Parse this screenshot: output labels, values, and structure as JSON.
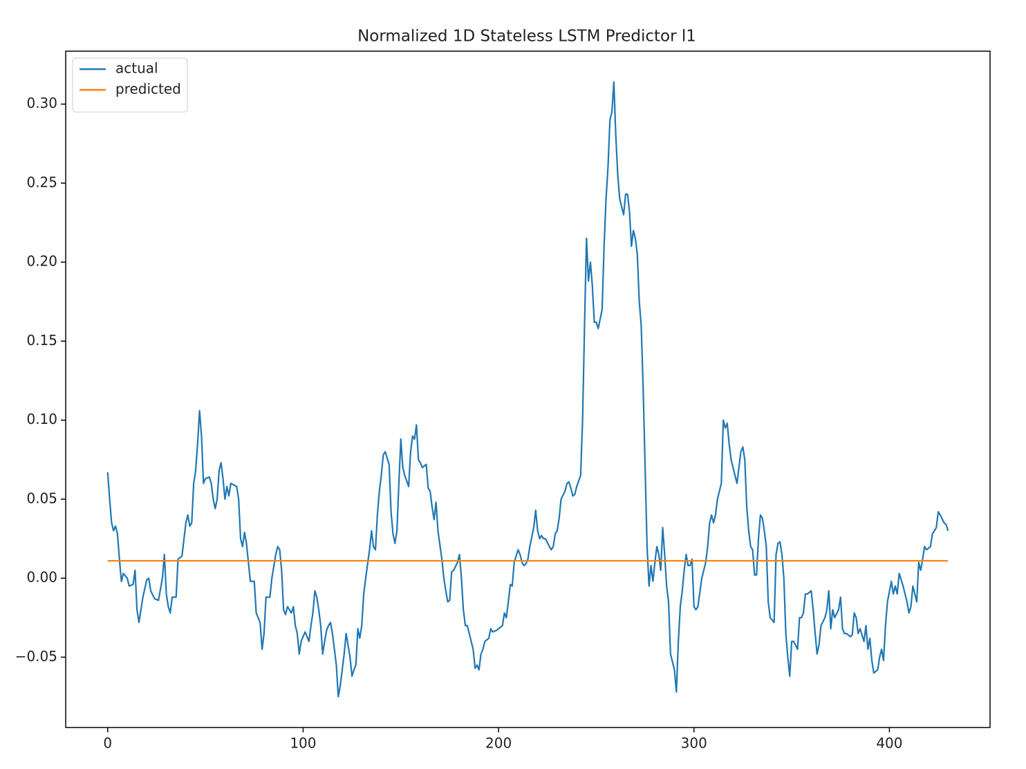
{
  "chart_data": {
    "type": "line",
    "title": "Normalized 1D Stateless LSTM Predictor l1",
    "xlim": [
      -21.5,
      451.5
    ],
    "ylim": [
      -0.0945,
      0.3335
    ],
    "xticks": [
      0,
      100,
      200,
      300,
      400
    ],
    "yticks": [
      {
        "value": -0.05,
        "label": "−0.05"
      },
      {
        "value": 0,
        "label": "0.00"
      },
      0.05,
      {
        "value": 0.1,
        "label": "0.10"
      },
      0.15,
      {
        "value": 0.2,
        "label": "0.20"
      },
      0.25,
      {
        "value": 0.3,
        "label": "0.30"
      }
    ],
    "grid": false,
    "legend": "upper left",
    "series": [
      {
        "name": "actual",
        "color": "#1f77b4",
        "x": [
          0,
          1,
          2,
          3,
          4,
          5,
          6,
          7,
          8,
          10,
          11,
          13,
          14,
          15,
          16,
          17,
          18,
          20,
          21,
          22,
          24,
          26,
          28,
          29,
          30,
          31,
          32,
          33,
          35,
          36,
          38,
          40,
          41,
          42,
          43,
          44,
          45,
          46,
          47,
          48,
          49,
          50,
          52,
          53,
          54,
          55,
          56,
          57,
          58,
          59,
          60,
          61,
          62,
          63,
          66,
          67,
          68,
          69,
          70,
          71,
          72,
          73,
          75,
          76,
          78,
          79,
          80,
          81,
          83,
          84,
          86,
          87,
          88,
          89,
          90,
          91,
          92,
          94,
          95,
          96,
          97,
          98,
          99,
          101,
          103,
          104,
          105,
          106,
          107,
          108,
          109,
          110,
          111,
          112,
          113,
          114,
          115,
          116,
          117,
          118,
          119,
          120,
          121,
          122,
          124,
          125,
          126,
          127,
          128,
          129,
          130,
          131,
          132,
          134,
          135,
          136,
          137,
          138,
          139,
          140,
          141,
          142,
          144,
          145,
          146,
          147,
          148,
          149,
          150,
          151,
          152,
          154,
          155,
          156,
          157,
          158,
          159,
          160,
          161,
          163,
          164,
          165,
          166,
          167,
          168,
          169,
          171,
          172,
          173,
          174,
          175,
          176,
          177,
          179,
          180,
          181,
          182,
          183,
          184,
          185,
          187,
          188,
          189,
          190,
          191,
          192,
          193,
          195,
          196,
          197,
          199,
          200,
          202,
          203,
          204,
          205,
          206,
          207,
          208,
          210,
          211,
          212,
          213,
          214,
          215,
          216,
          218,
          219,
          220,
          221,
          222,
          223,
          224,
          226,
          227,
          228,
          229,
          230,
          231,
          232,
          234,
          235,
          236,
          237,
          238,
          239,
          240,
          242,
          243,
          244,
          245,
          246,
          247,
          248,
          249,
          250,
          251,
          253,
          254,
          255,
          256,
          257,
          258,
          259,
          260,
          261,
          262,
          263,
          264,
          265,
          266,
          267,
          268,
          269,
          270,
          271,
          272,
          273,
          274,
          275,
          276,
          277,
          278,
          279,
          280,
          281,
          282,
          283,
          284,
          285,
          286,
          287,
          288,
          289,
          290,
          291,
          292,
          293,
          294,
          295,
          296,
          297,
          298,
          299,
          300,
          301,
          302,
          304,
          305,
          306,
          307,
          308,
          309,
          310,
          311,
          312,
          313,
          314,
          315,
          316,
          317,
          318,
          319,
          320,
          321,
          322,
          324,
          325,
          326,
          327,
          328,
          329,
          330,
          331,
          332,
          333,
          334,
          335,
          336,
          337,
          338,
          339,
          341,
          342,
          343,
          344,
          345,
          346,
          347,
          348,
          349,
          350,
          351,
          353,
          354,
          355,
          356,
          357,
          358,
          360,
          361,
          362,
          363,
          364,
          365,
          367,
          368,
          369,
          370,
          371,
          372,
          374,
          375,
          376,
          377,
          378,
          380,
          381,
          382,
          383,
          384,
          385,
          387,
          388,
          389,
          390,
          391,
          392,
          394,
          395,
          396,
          397,
          398,
          399,
          401,
          402,
          403,
          404,
          405,
          407,
          408,
          409,
          410,
          411,
          412,
          414,
          415,
          416,
          417,
          418,
          419,
          421,
          422,
          423,
          424,
          425,
          426,
          428,
          429,
          430
        ],
        "values": [
          0.067,
          0.05,
          0.035,
          0.03,
          0.033,
          0.028,
          0.012,
          -0.002,
          0.003,
          0,
          -0.005,
          -0.004,
          0.005,
          -0.02,
          -0.028,
          -0.02,
          -0.012,
          -0.001,
          0,
          -0.008,
          -0.013,
          -0.014,
          0,
          0.015,
          -0.01,
          -0.018,
          -0.022,
          -0.012,
          -0.012,
          0.012,
          0.014,
          0.035,
          0.04,
          0.033,
          0.035,
          0.06,
          0.068,
          0.085,
          0.106,
          0.09,
          0.06,
          0.063,
          0.064,
          0.06,
          0.05,
          0.044,
          0.05,
          0.068,
          0.073,
          0.063,
          0.05,
          0.058,
          0.052,
          0.06,
          0.058,
          0.05,
          0.025,
          0.02,
          0.029,
          0.022,
          0.01,
          -0.002,
          -0.002,
          -0.022,
          -0.028,
          -0.045,
          -0.035,
          -0.012,
          -0.012,
          0,
          0.015,
          0.02,
          0.018,
          0.005,
          -0.02,
          -0.023,
          -0.018,
          -0.022,
          -0.018,
          -0.03,
          -0.035,
          -0.048,
          -0.04,
          -0.034,
          -0.04,
          -0.03,
          -0.022,
          -0.008,
          -0.012,
          -0.02,
          -0.03,
          -0.048,
          -0.04,
          -0.033,
          -0.03,
          -0.028,
          -0.035,
          -0.045,
          -0.055,
          -0.075,
          -0.068,
          -0.058,
          -0.048,
          -0.035,
          -0.05,
          -0.062,
          -0.058,
          -0.055,
          -0.032,
          -0.038,
          -0.03,
          -0.01,
          0,
          0.018,
          0.03,
          0.02,
          0.018,
          0.04,
          0.055,
          0.065,
          0.078,
          0.08,
          0.072,
          0.042,
          0.028,
          0.022,
          0.03,
          0.06,
          0.088,
          0.07,
          0.065,
          0.058,
          0.08,
          0.09,
          0.088,
          0.097,
          0.075,
          0.073,
          0.07,
          0.072,
          0.057,
          0.055,
          0.045,
          0.037,
          0.048,
          0.03,
          0.012,
          0,
          -0.008,
          -0.015,
          -0.014,
          0.004,
          0.005,
          0.01,
          0.015,
          0,
          -0.02,
          -0.03,
          -0.03,
          -0.035,
          -0.045,
          -0.057,
          -0.055,
          -0.058,
          -0.048,
          -0.045,
          -0.04,
          -0.038,
          -0.032,
          -0.034,
          -0.033,
          -0.032,
          -0.03,
          -0.022,
          -0.025,
          -0.015,
          -0.004,
          -0.005,
          0.01,
          0.018,
          0.015,
          0.01,
          0.008,
          0.009,
          0.012,
          0.02,
          0.032,
          0.043,
          0.03,
          0.025,
          0.027,
          0.025,
          0.025,
          0.02,
          0.018,
          0.02,
          0.028,
          0.03,
          0.038,
          0.05,
          0.055,
          0.06,
          0.061,
          0.057,
          0.052,
          0.053,
          0.058,
          0.065,
          0.1,
          0.16,
          0.215,
          0.188,
          0.2,
          0.185,
          0.162,
          0.162,
          0.158,
          0.17,
          0.21,
          0.24,
          0.26,
          0.29,
          0.295,
          0.314,
          0.28,
          0.255,
          0.24,
          0.235,
          0.23,
          0.243,
          0.243,
          0.232,
          0.21,
          0.22,
          0.215,
          0.205,
          0.175,
          0.16,
          0.12,
          0.07,
          0.02,
          -0.005,
          0.008,
          -0.002,
          0.01,
          0.02,
          0.015,
          0.005,
          0.032,
          0.015,
          -0.005,
          -0.015,
          -0.048,
          -0.053,
          -0.058,
          -0.072,
          -0.04,
          -0.018,
          -0.008,
          0.005,
          0.015,
          0.008,
          0.008,
          0.012,
          -0.018,
          -0.02,
          -0.018,
          0,
          0.005,
          0.01,
          0.02,
          0.035,
          0.04,
          0.035,
          0.04,
          0.05,
          0.055,
          0.06,
          0.1,
          0.095,
          0.098,
          0.085,
          0.075,
          0.07,
          0.065,
          0.06,
          0.08,
          0.083,
          0.075,
          0.045,
          0.03,
          0.02,
          0.018,
          0.002,
          0.002,
          0.025,
          0.04,
          0.038,
          0.03,
          0.02,
          -0.015,
          -0.025,
          -0.028,
          0.015,
          0.022,
          0.023,
          0.015,
          0,
          -0.035,
          -0.05,
          -0.062,
          -0.04,
          -0.04,
          -0.045,
          -0.025,
          -0.025,
          -0.022,
          -0.01,
          -0.01,
          -0.008,
          -0.02,
          -0.035,
          -0.048,
          -0.042,
          -0.03,
          -0.025,
          -0.02,
          -0.008,
          -0.032,
          -0.02,
          -0.025,
          -0.02,
          -0.012,
          -0.032,
          -0.035,
          -0.035,
          -0.037,
          -0.036,
          -0.022,
          -0.025,
          -0.035,
          -0.032,
          -0.04,
          -0.03,
          -0.045,
          -0.038,
          -0.052,
          -0.06,
          -0.058,
          -0.05,
          -0.045,
          -0.052,
          -0.03,
          -0.015,
          -0.002,
          -0.01,
          -0.005,
          -0.01,
          0.003,
          -0.005,
          -0.01,
          -0.015,
          -0.022,
          -0.018,
          -0.005,
          -0.015,
          0.01,
          0.005,
          0.012,
          0.02,
          0.018,
          0.02,
          0.028,
          0.03,
          0.032,
          0.042,
          0.04,
          0.035,
          0.034,
          0.03
        ]
      },
      {
        "name": "predicted",
        "color": "#ff7f0e",
        "x": [
          0,
          430
        ],
        "values": [
          0.011,
          0.011
        ]
      }
    ]
  }
}
